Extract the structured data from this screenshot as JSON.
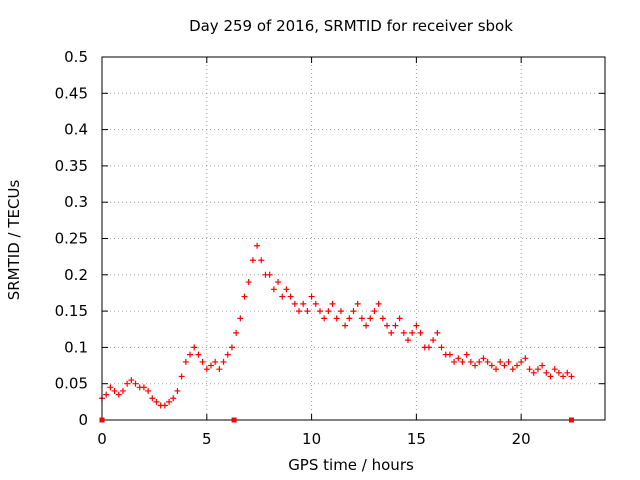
{
  "chart_data": {
    "type": "scatter",
    "title": "Day 259 of 2016, SRMTID for receiver sbok",
    "xlabel": "GPS time / hours",
    "ylabel": "SRMTID / TECUs",
    "xlim": [
      0,
      24
    ],
    "ylim": [
      0,
      0.5
    ],
    "xticks": [
      "0",
      "5",
      "10",
      "15",
      "20"
    ],
    "yticks": [
      "0",
      "0.05",
      "0.1",
      "0.15",
      "0.2",
      "0.25",
      "0.3",
      "0.35",
      "0.4",
      "0.45",
      "0.5"
    ],
    "grid": true,
    "marker": "+",
    "color": "#ff0000",
    "series": [
      {
        "x": [
          0.0,
          0.2,
          0.4,
          0.6,
          0.8,
          1.0,
          1.2,
          1.4,
          1.6,
          1.8,
          2.0,
          2.2,
          2.4,
          2.6,
          2.8,
          3.0,
          3.2,
          3.4,
          3.6,
          3.8,
          4.0,
          4.2,
          4.4,
          4.6,
          4.8,
          5.0,
          5.2,
          5.4,
          5.6,
          5.8,
          6.0,
          6.2,
          6.4,
          6.6,
          6.8,
          7.0,
          7.2,
          7.4,
          7.6,
          7.8,
          8.0,
          8.2,
          8.4,
          8.6,
          8.8,
          9.0,
          9.2,
          9.4,
          9.6,
          9.8,
          10.0,
          10.2,
          10.4,
          10.6,
          10.8,
          11.0,
          11.2,
          11.4,
          11.6,
          11.8,
          12.0,
          12.2,
          12.4,
          12.6,
          12.8,
          13.0,
          13.2,
          13.4,
          13.6,
          13.8,
          14.0,
          14.2,
          14.4,
          14.6,
          14.8,
          15.0,
          15.2,
          15.4,
          15.6,
          15.8,
          16.0,
          16.2,
          16.4,
          16.6,
          16.8,
          17.0,
          17.2,
          17.4,
          17.6,
          17.8,
          18.0,
          18.2,
          18.4,
          18.6,
          18.8,
          19.0,
          19.2,
          19.4,
          19.6,
          19.8,
          20.0,
          20.2,
          20.4,
          20.6,
          20.8,
          21.0,
          21.2,
          21.4,
          21.6,
          21.8,
          22.0,
          22.2,
          22.4
        ],
        "y": [
          0.03,
          0.035,
          0.045,
          0.04,
          0.035,
          0.04,
          0.05,
          0.055,
          0.05,
          0.045,
          0.045,
          0.04,
          0.03,
          0.025,
          0.02,
          0.02,
          0.025,
          0.03,
          0.04,
          0.06,
          0.08,
          0.09,
          0.1,
          0.09,
          0.08,
          0.07,
          0.075,
          0.08,
          0.07,
          0.08,
          0.09,
          0.1,
          0.12,
          0.14,
          0.17,
          0.19,
          0.22,
          0.24,
          0.22,
          0.2,
          0.2,
          0.18,
          0.19,
          0.17,
          0.18,
          0.17,
          0.16,
          0.15,
          0.16,
          0.15,
          0.17,
          0.16,
          0.15,
          0.14,
          0.15,
          0.16,
          0.14,
          0.15,
          0.13,
          0.14,
          0.15,
          0.16,
          0.14,
          0.13,
          0.14,
          0.15,
          0.16,
          0.14,
          0.13,
          0.12,
          0.13,
          0.14,
          0.12,
          0.11,
          0.12,
          0.13,
          0.12,
          0.1,
          0.1,
          0.11,
          0.12,
          0.1,
          0.09,
          0.09,
          0.08,
          0.085,
          0.08,
          0.09,
          0.08,
          0.075,
          0.08,
          0.085,
          0.08,
          0.075,
          0.07,
          0.08,
          0.075,
          0.08,
          0.07,
          0.075,
          0.08,
          0.085,
          0.07,
          0.065,
          0.07,
          0.075,
          0.065,
          0.06,
          0.07,
          0.065,
          0.06,
          0.065,
          0.06
        ]
      }
    ],
    "zero_markers_x": [
      0.0,
      6.3,
      22.4
    ]
  }
}
